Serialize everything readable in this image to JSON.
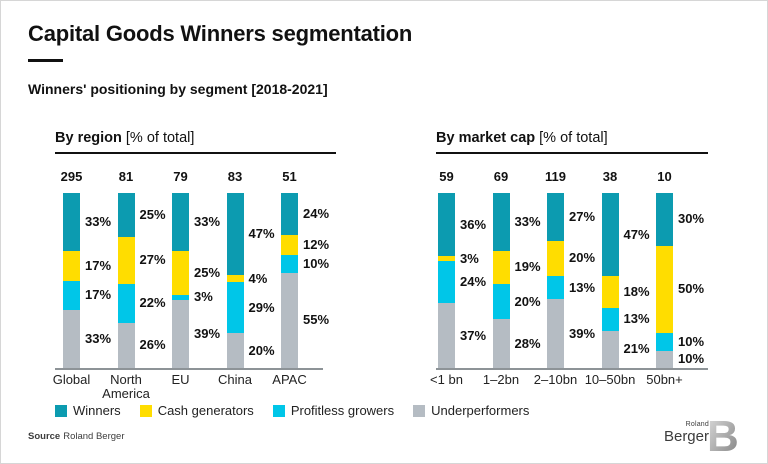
{
  "header": {
    "title": "Capital Goods Winners segmentation",
    "subtitle": "Winners' positioning by segment [2018-2021]"
  },
  "legend": [
    {
      "label": "Winners",
      "color": "#0c9bb0",
      "icon": "teal-square-icon"
    },
    {
      "label": "Cash generators",
      "color": "#ffdd00",
      "icon": "yellow-square-icon"
    },
    {
      "label": "Profitless growers",
      "color": "#00c6e8",
      "icon": "cyan-square-icon"
    },
    {
      "label": "Underperformers",
      "color": "#b5bcc3",
      "icon": "gray-square-icon"
    }
  ],
  "colors": {
    "axis": "#8d9397",
    "text": "#111111"
  },
  "chart_data": [
    {
      "type": "bar",
      "stacked": true,
      "orientation": "vertical",
      "title_bold": "By region",
      "title_rest": "[% of total]",
      "unit": "%",
      "ylim": [
        0,
        100
      ],
      "grid": false,
      "categories": [
        "Global",
        "North America",
        "EU",
        "China",
        "APAC"
      ],
      "totals": [
        295,
        81,
        79,
        83,
        51
      ],
      "series": [
        {
          "name": "Winners",
          "values": [
            33,
            25,
            33,
            47,
            24
          ]
        },
        {
          "name": "Cash generators",
          "values": [
            17,
            27,
            25,
            4,
            12
          ]
        },
        {
          "name": "Profitless growers",
          "values": [
            17,
            22,
            3,
            29,
            10
          ]
        },
        {
          "name": "Underperformers",
          "values": [
            33,
            26,
            39,
            20,
            55
          ]
        }
      ]
    },
    {
      "type": "bar",
      "stacked": true,
      "orientation": "vertical",
      "title_bold": "By market cap",
      "title_rest": "[% of total]",
      "unit": "%",
      "ylim": [
        0,
        100
      ],
      "grid": false,
      "categories": [
        "<1 bn",
        "1–2bn",
        "2–10bn",
        "10–50bn",
        "50bn+"
      ],
      "totals": [
        59,
        69,
        119,
        38,
        10
      ],
      "series": [
        {
          "name": "Winners",
          "values": [
            36,
            33,
            27,
            47,
            30
          ]
        },
        {
          "name": "Cash generators",
          "values": [
            3,
            19,
            20,
            18,
            50
          ]
        },
        {
          "name": "Profitless growers",
          "values": [
            24,
            20,
            13,
            13,
            10
          ]
        },
        {
          "name": "Underperformers",
          "values": [
            37,
            28,
            39,
            21,
            10
          ]
        }
      ]
    }
  ],
  "footer": {
    "source_label": "Source",
    "source_value": "Roland Berger",
    "logo_top": "Roland",
    "logo_bottom": "Berger",
    "logo_mark": "B"
  }
}
